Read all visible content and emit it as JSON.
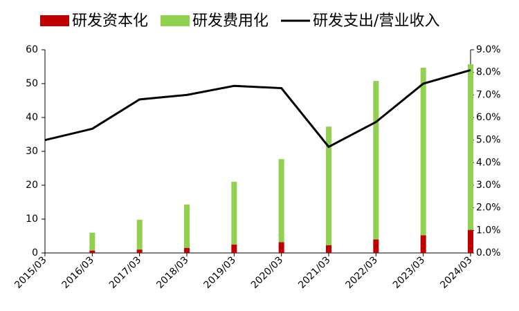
{
  "chart_data": {
    "type": "bar-line",
    "categories": [
      "2015/03",
      "2016/03",
      "2017/03",
      "2018/03",
      "2019/03",
      "2020/03",
      "2021/03",
      "2022/03",
      "2023/03",
      "2024/03"
    ],
    "series": [
      {
        "name": "研发资本化",
        "type": "bar",
        "color": "#c00000",
        "values": [
          null,
          0.7,
          1.0,
          1.5,
          2.5,
          3.2,
          2.3,
          4.0,
          5.2,
          6.8
        ]
      },
      {
        "name": "研发费用化",
        "type": "bar",
        "color": "#92d050",
        "values": [
          null,
          5.3,
          8.8,
          12.8,
          18.5,
          24.5,
          35.0,
          46.8,
          49.5,
          48.9
        ]
      },
      {
        "name": "研发支出/营业收入",
        "type": "line",
        "axis": "y2",
        "color": "#000000",
        "values": [
          5.0,
          5.5,
          6.8,
          7.0,
          7.4,
          7.3,
          4.7,
          5.8,
          7.5,
          8.1
        ]
      }
    ],
    "stacked": true,
    "ylim": [
      0,
      60
    ],
    "yticks": [
      0,
      10,
      20,
      30,
      40,
      50,
      60
    ],
    "y2lim": [
      0,
      9
    ],
    "y2ticks": [
      {
        "value": 0,
        "label": "0.0%"
      },
      {
        "value": 1,
        "label": "1.0%"
      },
      {
        "value": 2,
        "label": "2.0%"
      },
      {
        "value": 3,
        "label": "3.0%"
      },
      {
        "value": 4,
        "label": "4.0%"
      },
      {
        "value": 5,
        "label": "5.0%"
      },
      {
        "value": 6,
        "label": "6.0%"
      },
      {
        "value": 7,
        "label": "7.0%"
      },
      {
        "value": 8,
        "label": "8.0%"
      },
      {
        "value": 9,
        "label": "9.0%"
      }
    ],
    "legend": "top"
  }
}
